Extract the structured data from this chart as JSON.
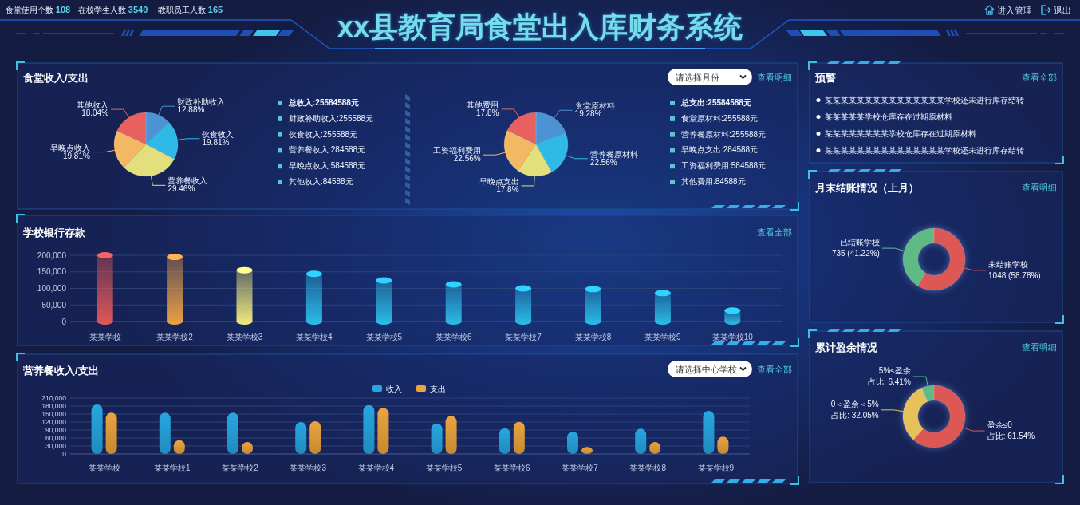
{
  "chart_data": [
    {
      "type": "other",
      "title": "xx县教育局食堂出入库财务系统",
      "annotations": [
        "食堂使用个数 108",
        "在校学生人数 3540",
        "教职员工人数 165",
        "进入管理",
        "退出"
      ]
    },
    {
      "type": "pie",
      "title": "食堂收入/支出",
      "categories": [
        "财政补助收入",
        "伙食收入",
        "营养餐收入",
        "早晚点收入",
        "其他收入"
      ],
      "values": [
        12.88,
        19.81,
        29.46,
        19.81,
        18.04
      ],
      "colors": [
        "#4b93d3",
        "#2fb9e6",
        "#e3df7c",
        "#f3b862",
        "#e8605f"
      ],
      "value_labels": [
        "12.88%",
        "19.81%",
        "29.46%",
        "19.81%",
        "18.04%"
      ],
      "annotations": [
        "总收入:25584588元",
        "财政补助收入:255588元",
        "伙食收入:255588元",
        "营养餐收入:284588元",
        "早晚点收入:584588元",
        "其他收入:84588元"
      ]
    },
    {
      "type": "pie",
      "categories": [
        "食堂原材料",
        "营养餐原材料",
        "早晚点支出",
        "工资福利费用",
        "其他费用"
      ],
      "values": [
        19.28,
        22.56,
        17.8,
        22.56,
        17.8
      ],
      "colors": [
        "#4b93d3",
        "#2fb9e6",
        "#e3df7c",
        "#f3b862",
        "#e8605f"
      ],
      "value_labels": [
        "19.28%",
        "22.56%",
        "17.8%",
        "22.56%",
        "17.8%"
      ],
      "annotations": [
        "请选择月份",
        "查看明细",
        "总支出:25584588元",
        "食堂原材料:255588元",
        "营养餐原材料:255588元",
        "早晚点支出:284588元",
        "工资福利费用:584588元",
        "其他费用:84588元"
      ]
    },
    {
      "type": "other",
      "title": "预警",
      "annotations": [
        "查看全部",
        "某某某某某某某某某某某某某某某学校还未进行库存结转",
        "某某某某某学校仓库存在过期原材料",
        "某某某某某某某某学校仓库存在过期原材料",
        "某某某某某某某某某某某某某某某学校还未进行库存结转"
      ]
    },
    {
      "type": "bar",
      "title": "学校银行存款",
      "categories": [
        "某某学校",
        "某某学校2",
        "某某学校3",
        "某某学校4",
        "某某学校5",
        "某某学校6",
        "某某学校7",
        "某某学校8",
        "某某学校9",
        "某某学校10"
      ],
      "values": [
        200000,
        195000,
        155000,
        144000,
        124000,
        112000,
        100000,
        98000,
        86000,
        33000
      ],
      "colors": [
        "#e05858",
        "#eba145",
        "#f0ea7c",
        "#2bbde8",
        "#2bbde8",
        "#2bbde8",
        "#2bbde8",
        "#2bbde8",
        "#2bbde8",
        "#2bbde8"
      ],
      "ylim": [
        0,
        200000
      ],
      "yticks": [
        0,
        {
          "value": 50000,
          "label": "50,000"
        },
        {
          "value": 100000,
          "label": "100,000"
        },
        {
          "value": 150000,
          "label": "150,000"
        },
        {
          "value": 200000,
          "label": "200,000"
        }
      ],
      "grid": "y",
      "annotations": [
        "查看全部"
      ]
    },
    {
      "type": "donut",
      "title": "月末结账情况（上月）",
      "categories": [
        "未结账学校",
        "已结账学校"
      ],
      "values": [
        1048,
        735
      ],
      "colors": [
        "#dd5854",
        "#5fbb86"
      ],
      "value_labels": [
        "1048 (58.78%)",
        "735 (41.22%)"
      ],
      "annotations": [
        "查看明细"
      ]
    },
    {
      "type": "bar",
      "title": "营养餐收入/支出",
      "categories": [
        "某某学校",
        "某某学校1",
        "某某学校2",
        "某某学校3",
        "某某学校4",
        "某某学校5",
        "某某学校6",
        "某某学校7",
        "某某学校8",
        "某某学校9"
      ],
      "series": [
        {
          "name": "收入",
          "color": "#27a6e2",
          "values": [
            186000,
            155000,
            155000,
            120000,
            184000,
            115000,
            97000,
            84000,
            95000,
            162000
          ]
        },
        {
          "name": "支出",
          "color": "#eba43e",
          "values": [
            155000,
            52000,
            45000,
            123000,
            173000,
            143000,
            121000,
            26000,
            45000,
            65000
          ]
        }
      ],
      "ylim": [
        0,
        210000
      ],
      "yticks": [
        0,
        {
          "value": 30000,
          "label": "30,000"
        },
        {
          "value": 60000,
          "label": "60,000"
        },
        {
          "value": 90000,
          "label": "90,000"
        },
        {
          "value": 120000,
          "label": "120,000"
        },
        {
          "value": 150000,
          "label": "150,000"
        },
        {
          "value": 180000,
          "label": "180,000"
        },
        {
          "value": 210000,
          "label": "210,000"
        }
      ],
      "grid": "y",
      "legend": "top",
      "annotations": [
        "请选择中心学校",
        "查看全部"
      ]
    },
    {
      "type": "donut",
      "title": "累计盈余情况",
      "categories": [
        "盈余≤0",
        "0＜盈余＜5%",
        "5%≤盈余"
      ],
      "values": [
        61.54,
        32.05,
        6.41
      ],
      "colors": [
        "#dd5854",
        "#e8c05a",
        "#5fbb86"
      ],
      "value_labels": [
        "占比: 61.54%",
        "占比: 32.05%",
        "占比: 6.41%"
      ],
      "annotations": [
        "查看明细"
      ]
    }
  ]
}
